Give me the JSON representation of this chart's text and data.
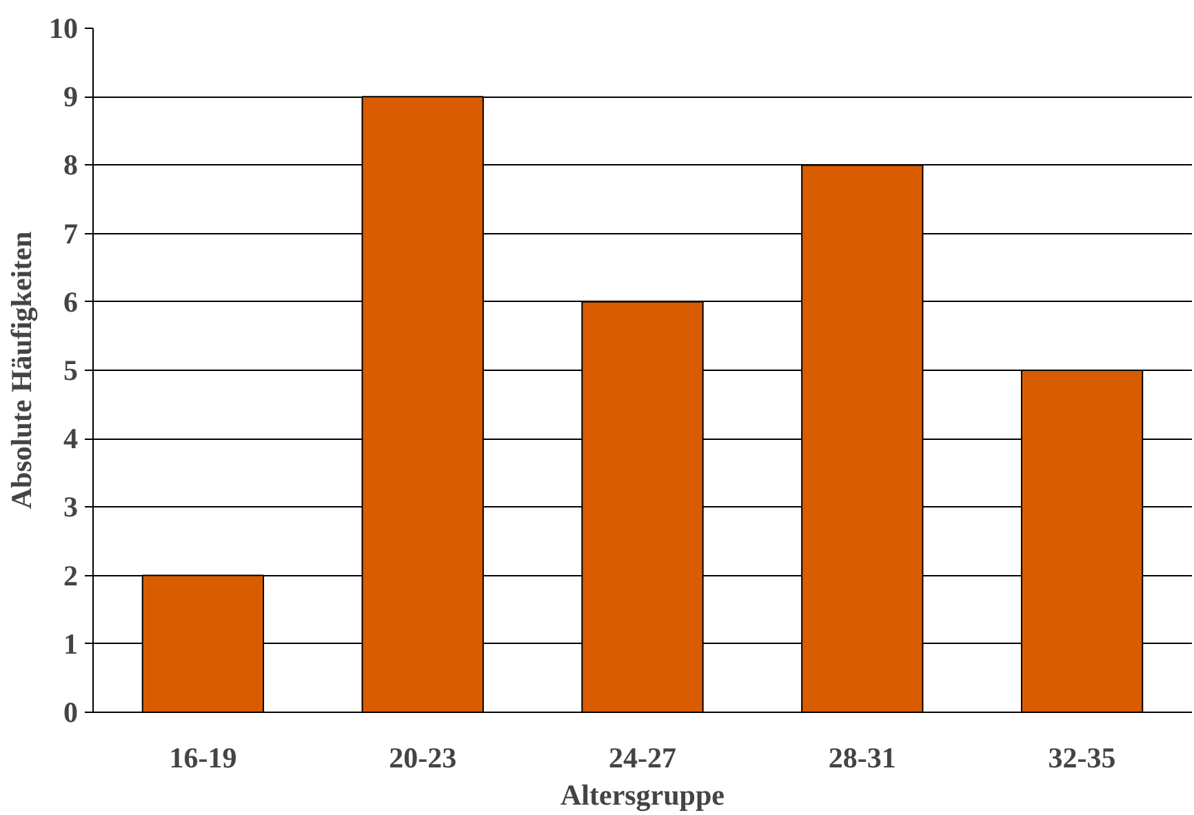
{
  "chart_data": {
    "type": "bar",
    "xlabel": "Altersgruppe",
    "ylabel": "Absolute Häufigkeiten",
    "categories": [
      "16-19",
      "20-23",
      "24-27",
      "28-31",
      "32-35"
    ],
    "values": [
      2,
      9,
      6,
      8,
      5
    ],
    "color": "#d95c00",
    "ylim": [
      0,
      10
    ],
    "yticks": [
      0,
      1,
      2,
      3,
      4,
      5,
      6,
      7,
      8,
      9,
      10
    ],
    "grid": "y"
  }
}
